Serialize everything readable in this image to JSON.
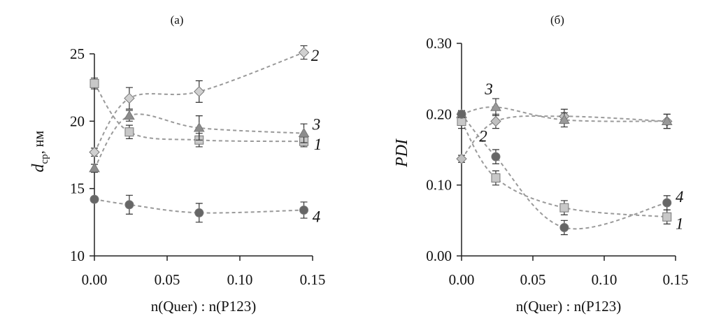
{
  "chart_data": [
    {
      "type": "line",
      "title": "(а)",
      "xlabel": "n(Quer) : n(P123)",
      "ylabel": {
        "main": "d",
        "sub": "ср",
        "unit": ", нм"
      },
      "x": [
        0,
        0.024,
        0.072,
        0.144
      ],
      "xlim": [
        0,
        0.15
      ],
      "xticks": [
        {
          "value": 0,
          "label": "0.00"
        },
        {
          "value": 0.05,
          "label": "0.05"
        },
        {
          "value": 0.1,
          "label": "0.10"
        },
        {
          "value": 0.15,
          "label": "0.15"
        }
      ],
      "ylim": [
        10,
        25
      ],
      "yticks": [
        10,
        15,
        20,
        25
      ],
      "series": [
        {
          "name": "1",
          "marker": "square",
          "color": "#c8c8c8",
          "values": [
            22.8,
            19.2,
            18.6,
            18.5
          ],
          "errors": [
            0.4,
            0.5,
            0.5,
            0.4
          ]
        },
        {
          "name": "2",
          "marker": "diamond",
          "color": "#d0d0d0",
          "values": [
            17.7,
            21.7,
            22.2,
            25.1
          ],
          "errors": [
            0.3,
            0.8,
            0.8,
            0.5
          ]
        },
        {
          "name": "3",
          "marker": "triangle",
          "color": "#8c8c8c",
          "values": [
            16.5,
            20.4,
            19.5,
            19.1
          ],
          "errors": [
            0.3,
            0.4,
            0.9,
            0.7
          ]
        },
        {
          "name": "4",
          "marker": "circle",
          "color": "#666666",
          "values": [
            14.2,
            13.8,
            13.2,
            13.4
          ],
          "errors": [
            0.2,
            0.7,
            0.7,
            0.6
          ]
        }
      ]
    },
    {
      "type": "line",
      "title": "(б)",
      "xlabel": "n(Quer) : n(P123)",
      "ylabel": {
        "main": "PDI"
      },
      "x": [
        0,
        0.024,
        0.072,
        0.144
      ],
      "xlim": [
        0,
        0.15
      ],
      "xticks": [
        {
          "value": 0,
          "label": "0.00"
        },
        {
          "value": 0.05,
          "label": "0.05"
        },
        {
          "value": 0.1,
          "label": "0.10"
        },
        {
          "value": 0.15,
          "label": "0.15"
        }
      ],
      "ylim": [
        0,
        0.3
      ],
      "yticks": [
        {
          "value": 0,
          "label": "0.00"
        },
        {
          "value": 0.1,
          "label": "0.10"
        },
        {
          "value": 0.2,
          "label": "0.20"
        },
        {
          "value": 0.3,
          "label": "0.30"
        }
      ],
      "series": [
        {
          "name": "1",
          "marker": "square",
          "color": "#c8c8c8",
          "values": [
            0.19,
            0.11,
            0.068,
            0.055
          ],
          "errors": [
            0.01,
            0.01,
            0.01,
            0.01
          ]
        },
        {
          "name": "2",
          "marker": "diamond",
          "color": "#c0c0c0",
          "values": [
            0.137,
            0.19,
            0.197,
            0.19
          ],
          "errors": [
            0.005,
            0.01,
            0.01,
            0.01
          ]
        },
        {
          "name": "3",
          "marker": "triangle",
          "color": "#999999",
          "values": [
            0.2,
            0.21,
            0.192,
            0.19
          ],
          "errors": [
            0.005,
            0.012,
            0.01,
            0.01
          ]
        },
        {
          "name": "4",
          "marker": "circle",
          "color": "#666666",
          "values": [
            0.2,
            0.14,
            0.04,
            0.075
          ],
          "errors": [
            0.005,
            0.01,
            0.01,
            0.01
          ]
        }
      ]
    }
  ]
}
